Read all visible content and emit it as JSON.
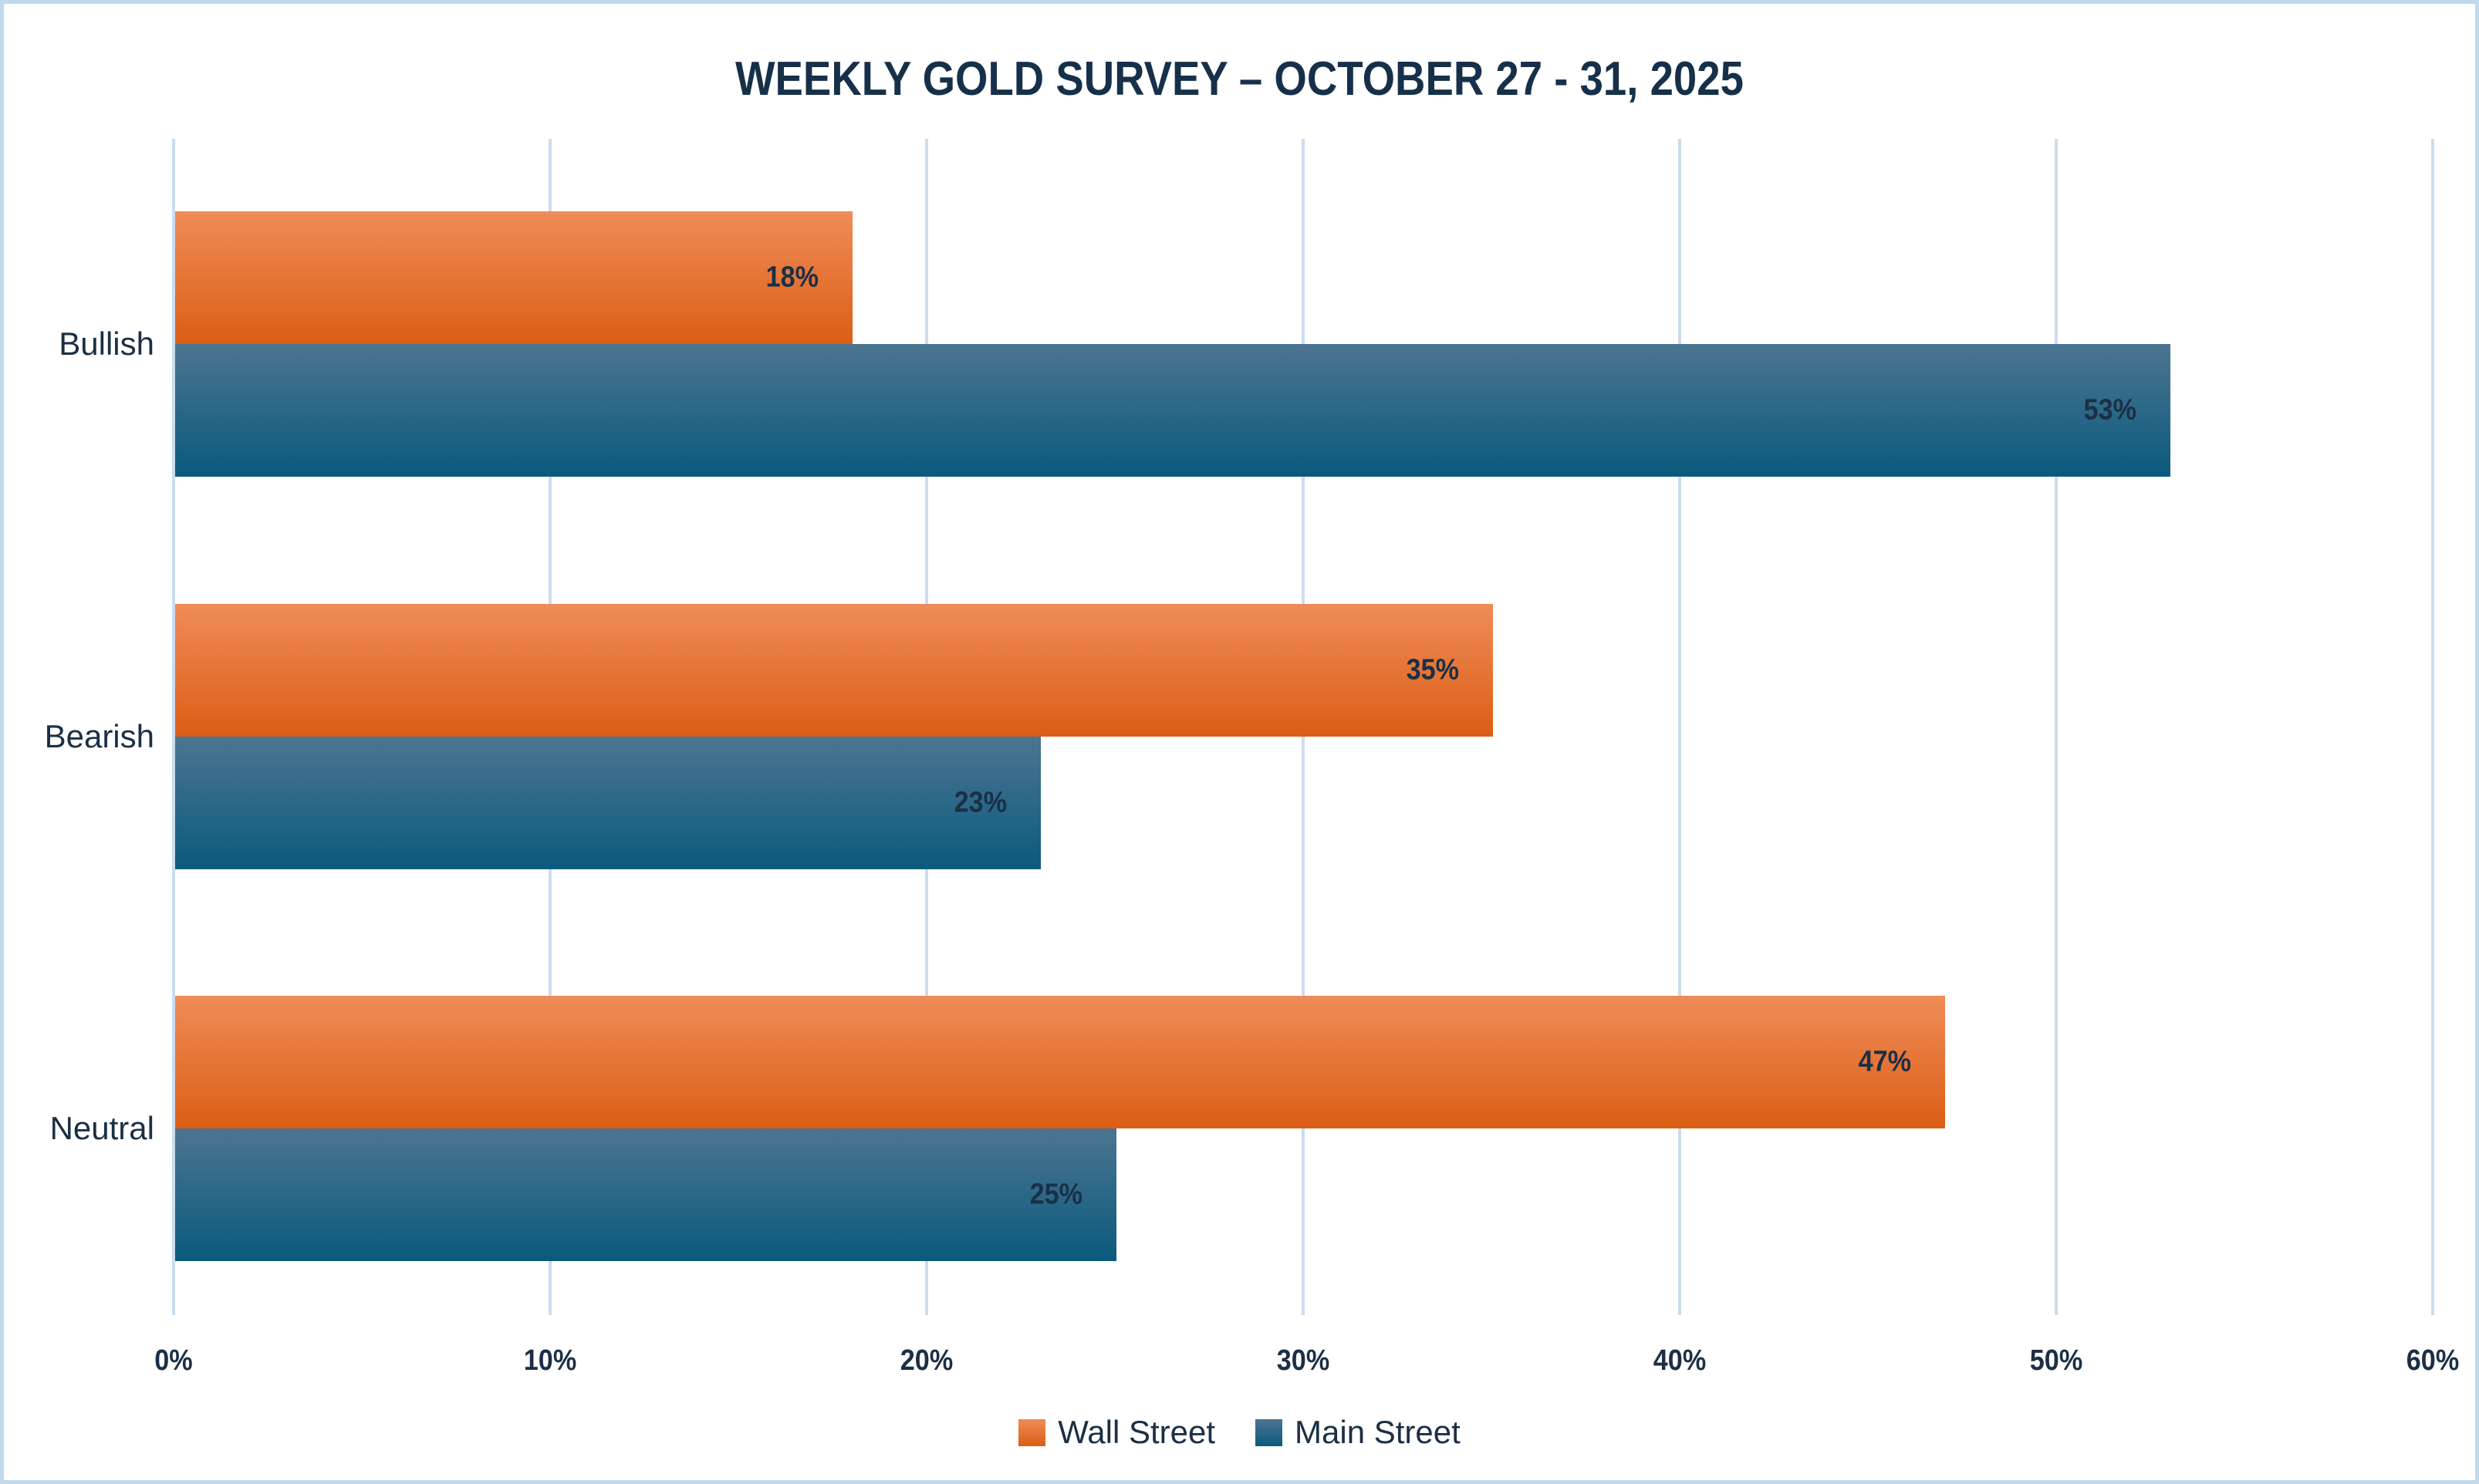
{
  "chart_data": {
    "type": "bar",
    "orientation": "horizontal",
    "title": "WEEKLY GOLD SURVEY – OCTOBER 27 - 31, 2025",
    "categories": [
      "Bullish",
      "Bearish",
      "Neutral"
    ],
    "series": [
      {
        "name": "Wall Street",
        "key": "wall",
        "values": [
          18,
          35,
          47
        ],
        "labels": [
          "18%",
          "35%",
          "47%"
        ],
        "color_top": "#ef8c58",
        "color_bottom": "#db5e15"
      },
      {
        "name": "Main Street",
        "key": "main",
        "values": [
          53,
          23,
          25
        ],
        "labels": [
          "53%",
          "23%",
          "25%"
        ],
        "color_top": "#4c7591",
        "color_bottom": "#0a5a7d"
      }
    ],
    "x_ticks": [
      "0%",
      "10%",
      "20%",
      "30%",
      "40%",
      "50%",
      "60%"
    ],
    "xlim": [
      0,
      60
    ],
    "grid": "vertical-only",
    "gridline_color": "#c9ddf1",
    "legend_position": "bottom",
    "text_color": "#1b2f45",
    "frame_border_color": "#bfd9ef"
  }
}
